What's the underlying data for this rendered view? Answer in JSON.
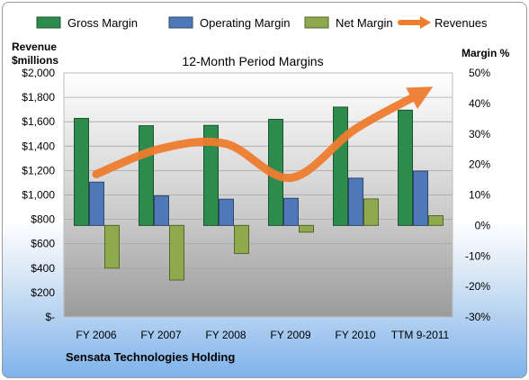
{
  "chart_data": {
    "type": "bar",
    "title": "12-Month Period Margins",
    "company": "Sensata Technologies Holding",
    "left_axis": {
      "title_line1": "Revenue",
      "title_line2": "$millions",
      "range": [
        0,
        2000
      ],
      "ticks": [
        0,
        200,
        400,
        600,
        800,
        1000,
        1200,
        1400,
        1600,
        1800,
        2000
      ],
      "tick_labels": [
        "$-",
        "$200",
        "$400",
        "$600",
        "$800",
        "$1,000",
        "$1,200",
        "$1,400",
        "$1,600",
        "$1,800",
        "$2,000"
      ]
    },
    "right_axis": {
      "title": "Margin %",
      "range": [
        -30,
        50
      ],
      "ticks": [
        -30,
        -20,
        -10,
        0,
        10,
        20,
        30,
        40,
        50
      ],
      "tick_labels": [
        "-30%",
        "-20%",
        "-10%",
        "0%",
        "10%",
        "20%",
        "30%",
        "40%",
        "50%"
      ]
    },
    "categories": [
      "FY 2006",
      "FY 2007",
      "FY 2008",
      "FY 2009",
      "FY 2010",
      "TTM 9-2011"
    ],
    "series": [
      {
        "name": "Gross Margin",
        "axis": "right",
        "kind": "bar",
        "color": "#2e8b4e",
        "values": [
          35.1,
          32.7,
          32.8,
          34.8,
          38.8,
          37.8
        ]
      },
      {
        "name": "Operating Margin",
        "axis": "right",
        "kind": "bar",
        "color": "#4f78b8",
        "values": [
          14.2,
          9.7,
          8.6,
          8.9,
          15.5,
          17.8
        ]
      },
      {
        "name": "Net Margin",
        "axis": "right",
        "kind": "bar",
        "color": "#8faa4c",
        "values": [
          -14.0,
          -17.9,
          -9.2,
          -2.2,
          8.7,
          3.2
        ]
      },
      {
        "name": "Revenues",
        "axis": "left",
        "kind": "line",
        "color": "#ee7d2f",
        "values": [
          1170,
          1380,
          1420,
          1140,
          1540,
          1830
        ]
      }
    ],
    "grid": true,
    "legend": "top"
  }
}
